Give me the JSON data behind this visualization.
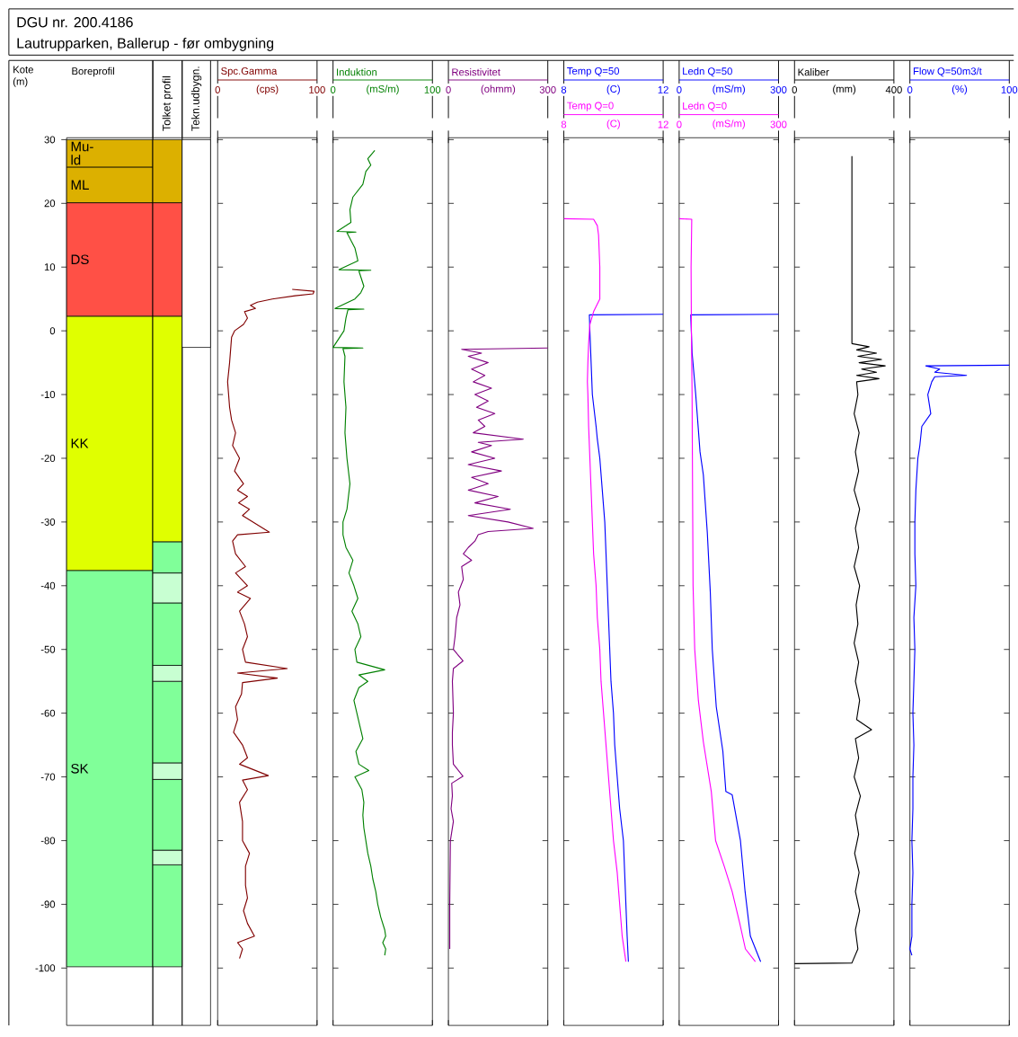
{
  "chart_data": [
    {
      "type": "bar",
      "title": "DGU nr. 200.4186",
      "subtitle": "Lautrupparken, Ballerup - før ombygning",
      "categories": [
        "Boreprofil"
      ],
      "ylabel": "Kote (m)",
      "ylim": [
        -109,
        30.3
      ],
      "yticks": [
        -100,
        -90,
        -80,
        -70,
        -60,
        -50,
        -40,
        -30,
        -20,
        -10,
        0,
        10,
        20,
        30
      ],
      "tick_labels": "y",
      "series": [
        {
          "name": "SK",
          "color": "#80ff99",
          "base": [
            -99.8
          ],
          "values": [
            62.2
          ]
        },
        {
          "name": "KK",
          "color": "#e0ff00",
          "base": [
            -37.6
          ],
          "values": [
            39.9
          ]
        },
        {
          "name": "DS",
          "color": "#ff5046",
          "base": [
            2.3
          ],
          "values": [
            17.8
          ]
        },
        {
          "name": "ML",
          "color": "#dcb000",
          "base": [
            20.1
          ],
          "values": [
            5.6
          ]
        },
        {
          "name": "Mu-ld",
          "color": "#dcb000",
          "base": [
            25.7
          ],
          "values": [
            4.3
          ]
        }
      ]
    },
    {
      "type": "bar",
      "categories": [
        "Tolket profil"
      ],
      "ylim": [
        -109,
        30.3
      ],
      "tick_labels": false,
      "series": [
        {
          "color": "#80ff99",
          "base": [
            -99.8
          ],
          "values": [
            16
          ]
        },
        {
          "color": "#c8ffd2",
          "base": [
            -83.8
          ],
          "values": [
            2.3
          ]
        },
        {
          "color": "#80ff99",
          "base": [
            -81.5
          ],
          "values": [
            11.1
          ]
        },
        {
          "color": "#c8ffd2",
          "base": [
            -70.4
          ],
          "values": [
            2.6
          ]
        },
        {
          "color": "#80ff99",
          "base": [
            -67.8
          ],
          "values": [
            12.8
          ]
        },
        {
          "color": "#c8ffd2",
          "base": [
            -55
          ],
          "values": [
            2.5
          ]
        },
        {
          "color": "#80ff99",
          "base": [
            -52.5
          ],
          "values": [
            9.8
          ]
        },
        {
          "color": "#c8ffd2",
          "base": [
            -42.7
          ],
          "values": [
            4.7
          ]
        },
        {
          "color": "#80ff99",
          "base": [
            -38
          ],
          "values": [
            4.9
          ]
        },
        {
          "color": "#e0ff00",
          "base": [
            -33.1
          ],
          "values": [
            35.4
          ]
        },
        {
          "color": "#ff5046",
          "base": [
            2.3
          ],
          "values": [
            17.8
          ]
        },
        {
          "color": "#dcb000",
          "base": [
            20.1
          ],
          "values": [
            9.9
          ]
        }
      ]
    },
    {
      "type": "bar",
      "categories": [
        "Tekn.udbygn."
      ],
      "ylim": [
        -109,
        30.3
      ],
      "tick_labels": false,
      "series": [
        {
          "color": "#ffffff",
          "base": [
            -2.6
          ],
          "values": [
            32.6
          ]
        }
      ]
    },
    {
      "type": "line",
      "xlim": [
        0,
        100
      ],
      "xticks": [
        0,
        100
      ],
      "xlabel": "(cps)",
      "ylim": [
        -109,
        30.3
      ],
      "yticks": [
        -100,
        -90,
        -80,
        -70,
        -60,
        -50,
        -40,
        -30,
        -20,
        -10,
        0,
        10,
        20,
        30
      ],
      "tick_labels": "x",
      "series": [
        {
          "name": "Spc.Gamma",
          "color": "#800000",
          "x": [
            75,
            97,
            96,
            78,
            55,
            40,
            33,
            38,
            27,
            30,
            26,
            17,
            14,
            13,
            12,
            10,
            11,
            12,
            14,
            18,
            15,
            22,
            17,
            26,
            20,
            30,
            21,
            32,
            25,
            52,
            20,
            15,
            18,
            28,
            18,
            30,
            20,
            33,
            22,
            27,
            30,
            25,
            28,
            70,
            20,
            60,
            25,
            24,
            18,
            20,
            16,
            25,
            30,
            22,
            51,
            25,
            30,
            22,
            25,
            25,
            32,
            28,
            28,
            30,
            26,
            30,
            37,
            20,
            25,
            22
          ],
          "values": [
            6.5,
            6.2,
            5.8,
            5.5,
            5,
            4.5,
            4,
            3.5,
            3,
            2,
            1,
            0,
            -1,
            -3,
            -5,
            -8,
            -10,
            -12,
            -14,
            -16,
            -18,
            -20,
            -22,
            -24,
            -25,
            -26,
            -27,
            -28,
            -29,
            -31.6,
            -32,
            -33,
            -35,
            -37,
            -38,
            -40,
            -41,
            -42,
            -44,
            -46,
            -48,
            -50,
            -52,
            -53,
            -53.7,
            -54.5,
            -55.2,
            -57,
            -59,
            -61,
            -63,
            -65,
            -67,
            -68,
            -69.8,
            -70.5,
            -72,
            -74,
            -77,
            -80,
            -82,
            -84,
            -87,
            -89,
            -91,
            -93,
            -95,
            -96,
            -97,
            -98.5
          ]
        }
      ]
    },
    {
      "type": "line",
      "xlim": [
        0,
        100
      ],
      "xticks": [
        0,
        100
      ],
      "xlabel": "(mS/m)",
      "ylim": [
        -109,
        30.3
      ],
      "yticks": [
        -100,
        -90,
        -80,
        -70,
        -60,
        -50,
        -40,
        -30,
        -20,
        -10,
        0,
        10,
        20,
        30
      ],
      "tick_labels": "x",
      "series": [
        {
          "name": "Induktion",
          "color": "#008000",
          "x": [
            42,
            35,
            38,
            33,
            30,
            20,
            17,
            18,
            4,
            23,
            14,
            22,
            25,
            6,
            38,
            26,
            31,
            28,
            22,
            2,
            31,
            15,
            13,
            11,
            0,
            30,
            10,
            12,
            11,
            13,
            12,
            14,
            17,
            14,
            10,
            10,
            13,
            20,
            16,
            21,
            25,
            19,
            25,
            28,
            22,
            24,
            52,
            26,
            35,
            26,
            21,
            27,
            30,
            23,
            26,
            36,
            22,
            29,
            31,
            30,
            31,
            33,
            35,
            38,
            40,
            43,
            45,
            48,
            52,
            53,
            50,
            53,
            52
          ],
          "values": [
            28.3,
            27,
            26,
            25,
            23,
            21,
            19,
            17,
            15.6,
            15.5,
            15.4,
            13,
            11,
            9.6,
            9.5,
            9.4,
            7,
            6,
            5,
            3.5,
            3.4,
            3.3,
            2,
            0,
            -2.6,
            -2.7,
            -2.8,
            -4,
            -8,
            -12,
            -16,
            -20,
            -24,
            -28,
            -30,
            -32,
            -34,
            -36,
            -38,
            -40,
            -42,
            -44,
            -46,
            -48,
            -50,
            -52,
            -53.2,
            -54,
            -55,
            -56,
            -58,
            -62,
            -64,
            -66,
            -68,
            -69,
            -70,
            -72,
            -74,
            -76,
            -78,
            -80,
            -82,
            -84,
            -86,
            -88,
            -90,
            -92,
            -94,
            -95,
            -96,
            -97,
            -98
          ]
        }
      ]
    },
    {
      "type": "line",
      "xlim": [
        0,
        300
      ],
      "xticks": [
        0,
        300
      ],
      "xlabel": "(ohmm)",
      "ylim": [
        -109,
        30.3
      ],
      "yticks": [
        -100,
        -90,
        -80,
        -70,
        -60,
        -50,
        -40,
        -30,
        -20,
        -10,
        0,
        10,
        20,
        30
      ],
      "tick_labels": "x",
      "series": [
        {
          "name": "Resistivitet",
          "color": "#800080",
          "x": [
            300,
            40,
            100,
            60,
            120,
            70,
            110,
            75,
            130,
            80,
            120,
            85,
            140,
            90,
            110,
            75,
            226,
            90,
            130,
            70,
            140,
            60,
            160,
            70,
            120,
            60,
            150,
            80,
            187,
            60,
            180,
            256,
            120,
            90,
            80,
            60,
            45,
            70,
            40,
            45,
            30,
            35,
            25,
            20,
            15,
            44,
            15,
            12,
            15,
            12,
            12,
            15,
            44,
            10,
            12,
            8,
            15,
            6,
            5,
            4,
            4
          ],
          "values": [
            -2.7,
            -2.9,
            -3.5,
            -4,
            -5,
            -6,
            -7,
            -8,
            -9,
            -10,
            -11,
            -12,
            -13,
            -14,
            -15,
            -16,
            -17,
            -17.5,
            -18,
            -19,
            -20,
            -21,
            -22,
            -23,
            -24,
            -25,
            -26,
            -27,
            -28,
            -29,
            -30,
            -31,
            -31.5,
            -32,
            -33,
            -34,
            -35,
            -36,
            -37,
            -39,
            -41,
            -43,
            -45,
            -48,
            -50,
            -51.8,
            -53,
            -55,
            -60,
            -63,
            -65,
            -68,
            -69.9,
            -71,
            -73,
            -75,
            -77,
            -80,
            -85,
            -90,
            -97
          ]
        }
      ]
    },
    {
      "type": "line",
      "xlim": [
        8,
        12
      ],
      "xticks": [
        8,
        12
      ],
      "xlabel": "(C)",
      "x2lim": [
        8,
        12
      ],
      "x2ticks": [
        8,
        12
      ],
      "x2label": "(C)",
      "ylim": [
        -109,
        30.3
      ],
      "yticks": [
        -100,
        -90,
        -80,
        -70,
        -60,
        -50,
        -40,
        -30,
        -20,
        -10,
        0,
        10,
        20,
        30
      ],
      "tick_labels": "x",
      "series": [
        {
          "name": "Temp Q=50",
          "color": "#0000ff",
          "x": [
            12,
            9.03,
            9.05,
            9.1,
            9.15,
            9.3,
            9.35,
            9.45,
            9.55,
            9.65,
            9.7,
            9.75,
            9.8,
            9.85,
            9.9,
            10.0,
            10.05,
            10.15,
            10.25,
            10.4,
            10.45,
            10.5,
            10.55,
            10.6
          ],
          "values": [
            2.6,
            2.5,
            0,
            -5,
            -10,
            -15,
            -17,
            -20,
            -25,
            -30,
            -35,
            -40,
            -45,
            -50,
            -55,
            -60,
            -65,
            -70,
            -75,
            -80,
            -85,
            -90,
            -95,
            -99
          ]
        },
        {
          "name": "Temp Q=0",
          "color": "#ff00ff",
          "axis": "x2",
          "x": [
            8,
            9.2,
            9.35,
            9.4,
            9.45,
            9.45,
            9.2,
            9.05,
            9.0,
            8.97,
            8.95,
            8.97,
            9.0,
            9.05,
            9.1,
            9.15,
            9.2,
            9.3,
            9.35,
            9.45,
            9.5,
            9.6,
            9.7,
            9.8,
            9.9,
            10.0,
            10.15,
            10.25,
            10.35,
            10.5
          ],
          "values": [
            17.6,
            17.5,
            16.5,
            15,
            10,
            5,
            3,
            1,
            -2,
            -5,
            -8,
            -10,
            -15,
            -20,
            -25,
            -30,
            -35,
            -40,
            -45,
            -50,
            -55,
            -60,
            -65,
            -70,
            -75,
            -80,
            -85,
            -90,
            -95,
            -99
          ]
        }
      ]
    },
    {
      "type": "line",
      "xlim": [
        0,
        300
      ],
      "xticks": [
        0,
        300
      ],
      "xlabel": "(mS/m)",
      "x2lim": [
        0,
        300
      ],
      "x2ticks": [
        0,
        300
      ],
      "x2label": "(mS/m)",
      "ylim": [
        -109,
        30.3
      ],
      "yticks": [
        -100,
        -90,
        -80,
        -70,
        -60,
        -50,
        -40,
        -30,
        -20,
        -10,
        0,
        10,
        20,
        30
      ],
      "tick_labels": "x",
      "series": [
        {
          "name": "Ledn Q=50",
          "color": "#0000ff",
          "x": [
            300,
            35,
            39,
            50,
            63,
            73,
            85,
            94,
            100,
            112,
            132,
            141,
            160,
            185,
            199,
            215,
            246
          ],
          "values": [
            2.6,
            2.5,
            -3.4,
            -10,
            -19,
            -22.6,
            -31.7,
            -41,
            -50,
            -59,
            -66,
            -72.3,
            -72.8,
            -80,
            -88,
            -95,
            -99
          ]
        },
        {
          "name": "Ledn Q=0",
          "color": "#ff00ff",
          "axis": "x2",
          "x": [
            0,
            38,
            36,
            37,
            39,
            40,
            41,
            42,
            47,
            58,
            73,
            97,
            110,
            136,
            160,
            183,
            200,
            230
          ],
          "values": [
            17.6,
            17.5,
            10,
            0,
            -10,
            -20,
            -30,
            -40,
            -50,
            -58,
            -64.5,
            -72.3,
            -80,
            -84,
            -88,
            -93,
            -97,
            -99
          ]
        }
      ]
    },
    {
      "type": "line",
      "xlim": [
        0,
        400
      ],
      "xticks": [
        0,
        400
      ],
      "xlabel": "(mm)",
      "ylim": [
        -109,
        30.3
      ],
      "yticks": [
        -100,
        -90,
        -80,
        -70,
        -60,
        -50,
        -40,
        -30,
        -20,
        -10,
        0,
        10,
        20,
        30
      ],
      "tick_labels": "x",
      "series": [
        {
          "name": "Kaliber",
          "color": "#000000",
          "x": [
            231,
            231,
            300,
            250,
            330,
            255,
            350,
            260,
            365,
            270,
            330,
            250,
            340,
            250,
            255,
            240,
            260,
            245,
            258,
            240,
            262,
            245,
            258,
            240,
            262,
            248,
            255,
            240,
            258,
            245,
            262,
            250,
            310,
            245,
            258,
            240,
            265,
            245,
            258,
            242,
            260,
            245,
            262,
            245,
            255,
            231,
            0
          ],
          "values": [
            27.4,
            -2,
            -2.5,
            -3,
            -3.5,
            -4,
            -4.5,
            -5,
            -5.5,
            -6,
            -6.5,
            -7,
            -7.5,
            -8,
            -10,
            -13,
            -16,
            -19,
            -22,
            -25,
            -28,
            -31,
            -34,
            -37,
            -40,
            -43,
            -46,
            -49,
            -52,
            -55,
            -58,
            -61,
            -62.6,
            -64,
            -67,
            -70,
            -73,
            -76,
            -79,
            -82,
            -85,
            -88,
            -91,
            -94,
            -97,
            -99.2,
            -99.3
          ]
        }
      ]
    },
    {
      "type": "line",
      "xlim": [
        0,
        100
      ],
      "xticks": [
        0,
        100
      ],
      "xlabel": "(%)",
      "ylim": [
        -109,
        30.3
      ],
      "yticks": [
        -100,
        -90,
        -80,
        -70,
        -60,
        -50,
        -40,
        -30,
        -20,
        -10,
        0,
        10,
        20,
        30
      ],
      "tick_labels": "x",
      "series": [
        {
          "name": "Flow Q=50m3/t",
          "color": "#0000ff",
          "x": [
            100,
            16,
            30,
            25,
            57,
            25,
            22,
            20,
            18,
            21,
            12,
            10,
            8,
            6,
            5,
            5,
            6,
            4,
            5,
            3,
            4,
            3,
            3,
            2,
            3,
            2,
            2,
            0,
            2
          ],
          "values": [
            -5.4,
            -5.5,
            -6,
            -6.5,
            -7,
            -7.2,
            -8,
            -9,
            -10,
            -13,
            -15,
            -18,
            -20,
            -25,
            -30,
            -35,
            -40,
            -45,
            -50,
            -60,
            -65,
            -70,
            -75,
            -80,
            -85,
            -90,
            -95,
            -97,
            -98
          ]
        }
      ]
    }
  ]
}
